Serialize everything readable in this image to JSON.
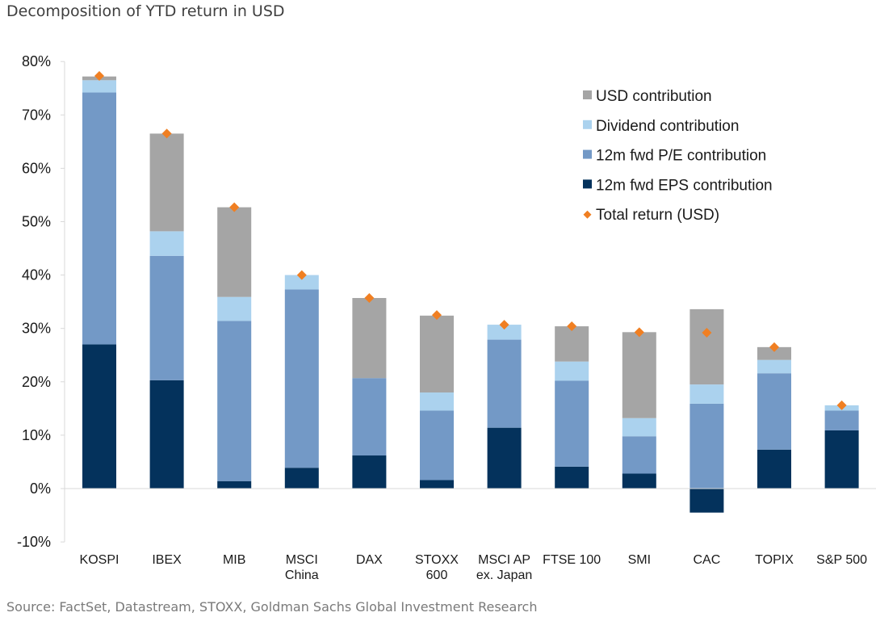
{
  "chart_data": {
    "type": "bar",
    "stacked": true,
    "title": "Decomposition of YTD return in USD",
    "source": "Source: FactSet, Datastream, STOXX, Goldman Sachs Global Investment Research",
    "xlabel": "",
    "ylabel": "",
    "ylim": [
      -10,
      80
    ],
    "yticks": [
      "-10%",
      "0%",
      "10%",
      "20%",
      "30%",
      "40%",
      "50%",
      "60%",
      "70%",
      "80%"
    ],
    "ytick_values": [
      -10,
      0,
      10,
      20,
      30,
      40,
      50,
      60,
      70,
      80
    ],
    "grid": false,
    "legend_position": "top-right",
    "categories": [
      [
        "KOSPI"
      ],
      [
        "IBEX"
      ],
      [
        "MIB"
      ],
      [
        "MSCI",
        "China"
      ],
      [
        "DAX"
      ],
      [
        "STOXX",
        "600"
      ],
      [
        "MSCI AP",
        "ex. Japan"
      ],
      [
        "FTSE 100"
      ],
      [
        "SMI"
      ],
      [
        "CAC"
      ],
      [
        "TOPIX"
      ],
      [
        "S&P 500"
      ]
    ],
    "series": [
      {
        "name": "12m fwd EPS contribution",
        "color": "#04325c",
        "values": [
          27.0,
          20.3,
          1.4,
          3.9,
          6.2,
          1.6,
          11.4,
          4.1,
          2.8,
          -4.5,
          7.3,
          10.9
        ]
      },
      {
        "name": "12m fwd P/E contribution",
        "color": "#7399c6",
        "values": [
          47.2,
          23.3,
          30.0,
          33.4,
          14.5,
          13.0,
          16.5,
          16.1,
          7.0,
          15.9,
          14.3,
          3.7
        ]
      },
      {
        "name": "Dividend contribution",
        "color": "#abd2ee",
        "values": [
          2.3,
          4.6,
          4.5,
          2.7,
          0.0,
          3.4,
          2.8,
          3.6,
          3.4,
          3.6,
          2.5,
          1.0
        ]
      },
      {
        "name": "USD contribution",
        "color": "#a5a5a5",
        "values": [
          0.7,
          18.3,
          16.8,
          0.0,
          15.0,
          14.4,
          0.0,
          6.6,
          16.1,
          14.1,
          2.4,
          0.0
        ]
      }
    ],
    "total_series": {
      "name": "Total return (USD)",
      "color": "#f07f22",
      "marker": "diamond",
      "values": [
        77.3,
        66.5,
        52.7,
        40.0,
        35.7,
        32.5,
        30.7,
        30.4,
        29.3,
        29.2,
        26.5,
        15.6
      ]
    },
    "legend_order": [
      "USD contribution",
      "Dividend contribution",
      "12m fwd P/E contribution",
      "12m fwd EPS contribution",
      "Total return (USD)"
    ]
  }
}
